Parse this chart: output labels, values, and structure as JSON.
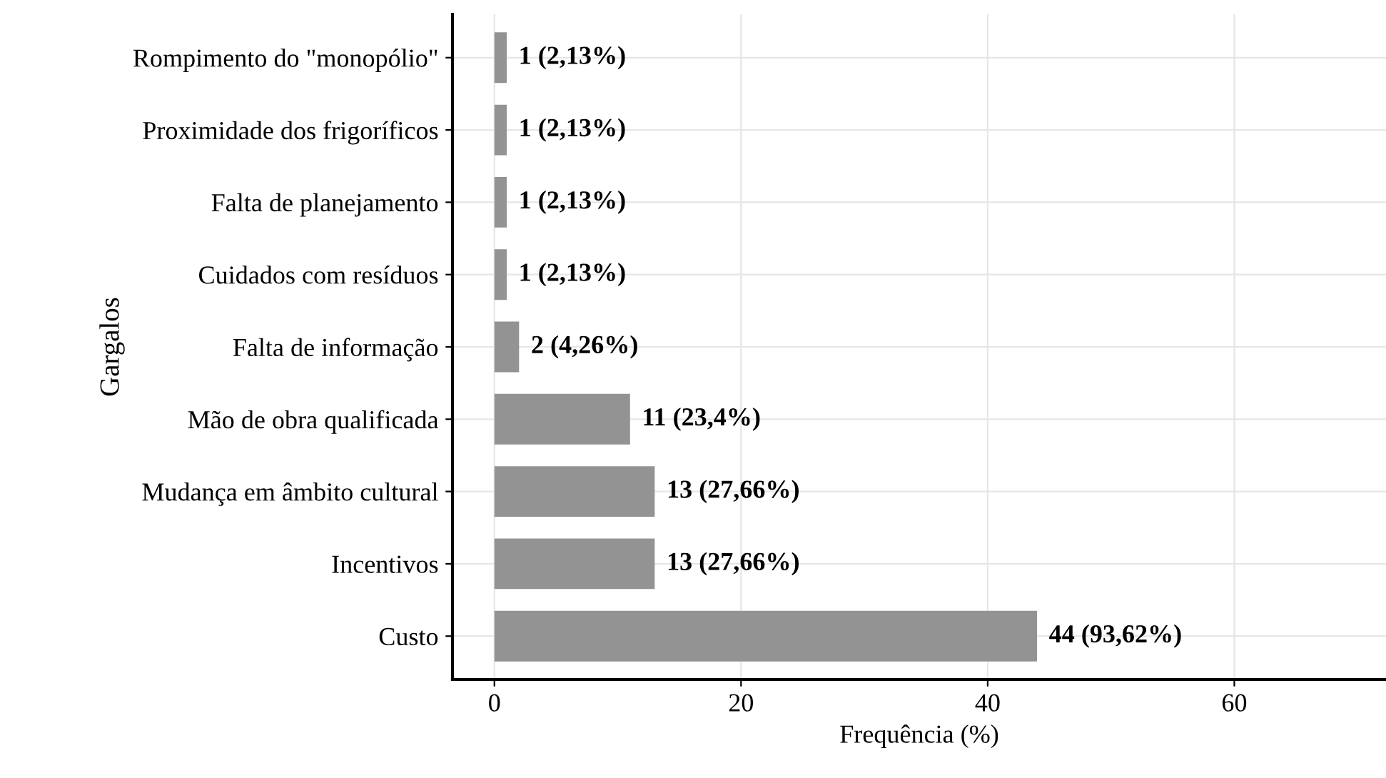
{
  "chart_data": {
    "type": "bar",
    "orientation": "horizontal",
    "xlabel": "Frequência (%)",
    "ylabel": "Gargalos",
    "categories": [
      "Rompimento do \"monopólio\"",
      "Proximidade dos frigoríficos",
      "Falta de planejamento",
      "Cuidados com resíduos",
      "Falta de informação",
      "Mão de obra qualificada",
      "Mudança em âmbito cultural",
      "Incentivos",
      "Custo"
    ],
    "values": [
      1,
      1,
      1,
      1,
      2,
      11,
      13,
      13,
      44
    ],
    "value_labels": [
      "1 (2,13%)",
      "1 (2,13%)",
      "1 (2,13%)",
      "1 (2,13%)",
      "2 (4,26%)",
      "11 (23,4%)",
      "13 (27,66%)",
      "13 (27,66%)",
      "44 (93,62%)"
    ],
    "color": "#939393",
    "xlim": [
      -3.4,
      72.3
    ],
    "xticks": [
      0,
      20,
      40,
      60
    ],
    "grid": true
  }
}
